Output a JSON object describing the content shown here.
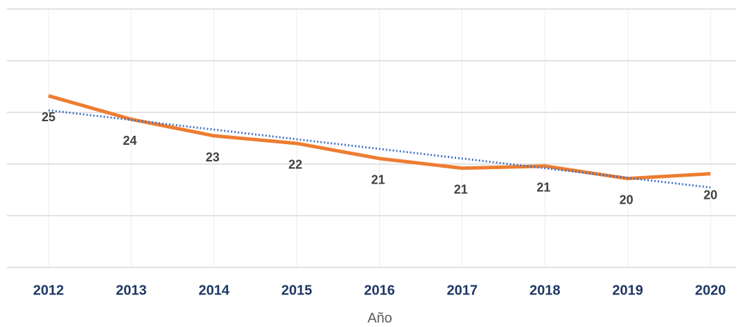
{
  "chart_data": {
    "type": "line",
    "x_label": "Año",
    "categories": [
      "2012",
      "2013",
      "2014",
      "2015",
      "2016",
      "2017",
      "2018",
      "2019",
      "2020"
    ],
    "values": [
      24.96,
      23.6,
      22.64,
      22.2,
      21.32,
      20.76,
      20.88,
      20.16,
      20.44
    ],
    "value_labels": [
      "25",
      "24",
      "23",
      "22",
      "21",
      "21",
      "21",
      "20",
      "20"
    ],
    "color": "#ed7d31",
    "trendline": {
      "values": [
        24.12,
        23.56,
        23.0,
        22.44,
        21.88,
        21.32,
        20.76,
        20.2,
        19.64
      ],
      "color": "#4472c4"
    },
    "ylim": [
      15,
      30
    ],
    "yticks": [
      15,
      18,
      21,
      24,
      27,
      30
    ],
    "grid": true
  }
}
